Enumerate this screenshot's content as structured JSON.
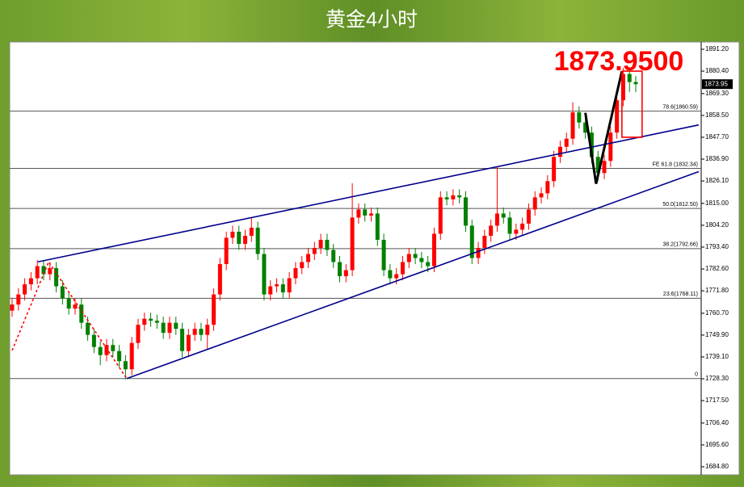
{
  "chart_data": {
    "type": "candlestick",
    "title": "黄金4小时",
    "annotation": "1873.9500",
    "last_price": {
      "value": 1873.95,
      "label": "1873.95"
    },
    "up_color": "#ff0000",
    "down_color": "#008000",
    "xlim": [
      0,
      109
    ],
    "ylim": [
      1680.8,
      1894.8
    ],
    "yticks": [
      {
        "value": 1891.2,
        "label": "1891.20"
      },
      {
        "value": 1880.4,
        "label": "1880.40"
      },
      {
        "value": 1869.3,
        "label": "1869.30"
      },
      {
        "value": 1858.5,
        "label": "1858.50"
      },
      {
        "value": 1847.7,
        "label": "1847.70"
      },
      {
        "value": 1836.9,
        "label": "1836.90"
      },
      {
        "value": 1826.1,
        "label": "1826.10"
      },
      {
        "value": 1815,
        "label": "1815.00"
      },
      {
        "value": 1804.2,
        "label": "1804.20"
      },
      {
        "value": 1793.4,
        "label": "1793.40"
      },
      {
        "value": 1782.6,
        "label": "1782.60"
      },
      {
        "value": 1771.8,
        "label": "1771.80"
      },
      {
        "value": 1760.7,
        "label": "1760.70"
      },
      {
        "value": 1749.9,
        "label": "1749.90"
      },
      {
        "value": 1739.1,
        "label": "1739.10"
      },
      {
        "value": 1728.3,
        "label": "1728.30"
      },
      {
        "value": 1717.5,
        "label": "1717.50"
      },
      {
        "value": 1706.4,
        "label": "1706.40"
      },
      {
        "value": 1695.6,
        "label": "1695.60"
      },
      {
        "value": 1684.8,
        "label": "1684.80"
      }
    ],
    "levels": [
      {
        "name": "78.6(1860.59)",
        "value": 1860.59
      },
      {
        "name": "FE 61.8 (1832.34)",
        "value": 1832.34
      },
      {
        "name": "50.0(1812.50)",
        "value": 1812.5
      },
      {
        "name": "38.2(1792.66)",
        "value": 1792.66
      },
      {
        "name": "23.6(1768.11)",
        "value": 1768.11
      },
      {
        "name": "0",
        "value": 1728.4
      }
    ],
    "open": [
      1762,
      1765,
      1770,
      1775,
      1778,
      1784,
      1780,
      1783,
      1774,
      1768,
      1763,
      1765,
      1756,
      1750,
      1744,
      1740,
      1745,
      1742,
      1737,
      1733,
      1746,
      1755,
      1758,
      1757,
      1756,
      1751,
      1756,
      1753,
      1742,
      1750,
      1753,
      1750,
      1755,
      1770,
      1785,
      1798,
      1801,
      1795,
      1799,
      1803,
      1790,
      1770,
      1774,
      1775,
      1771,
      1778,
      1783,
      1786,
      1790,
      1793,
      1797,
      1792,
      1786,
      1779,
      1782,
      1808,
      1812,
      1809,
      1810,
      1797,
      1782,
      1778,
      1780,
      1786,
      1790,
      1788,
      1786,
      1784,
      1800,
      1818,
      1817,
      1819,
      1818,
      1804,
      1788,
      1793,
      1799,
      1804,
      1810,
      1808,
      1800,
      1802,
      1805,
      1812,
      1818,
      1820,
      1826,
      1838,
      1843,
      1847,
      1860,
      1855,
      1850,
      1838,
      1830,
      1836,
      1850,
      1866,
      1879,
      1875
    ],
    "high": [
      1768,
      1773,
      1778,
      1781,
      1787,
      1787,
      1786,
      1786,
      1777,
      1771,
      1768,
      1768,
      1759,
      1753,
      1747,
      1748,
      1748,
      1745,
      1740,
      1749,
      1758,
      1761,
      1761,
      1760,
      1759,
      1759,
      1759,
      1756,
      1753,
      1756,
      1756,
      1758,
      1773,
      1788,
      1801,
      1804,
      1804,
      1802,
      1808,
      1806,
      1793,
      1777,
      1778,
      1778,
      1781,
      1786,
      1789,
      1793,
      1796,
      1800,
      1800,
      1795,
      1789,
      1785,
      1825,
      1815,
      1815,
      1813,
      1813,
      1800,
      1785,
      1783,
      1789,
      1793,
      1793,
      1791,
      1789,
      1803,
      1821,
      1821,
      1822,
      1822,
      1821,
      1807,
      1796,
      1802,
      1807,
      1833,
      1813,
      1811,
      1805,
      1808,
      1815,
      1821,
      1823,
      1829,
      1841,
      1846,
      1850,
      1865,
      1863,
      1858,
      1853,
      1841,
      1839,
      1853,
      1869,
      1882,
      1881,
      1878
    ],
    "low": [
      1759,
      1762,
      1767,
      1772,
      1775,
      1777,
      1777,
      1771,
      1765,
      1760,
      1760,
      1753,
      1747,
      1741,
      1735,
      1737,
      1739,
      1734,
      1728,
      1730,
      1743,
      1752,
      1754,
      1753,
      1748,
      1748,
      1750,
      1739,
      1739,
      1747,
      1747,
      1743,
      1752,
      1767,
      1782,
      1795,
      1792,
      1792,
      1796,
      1787,
      1767,
      1767,
      1771,
      1768,
      1768,
      1775,
      1780,
      1783,
      1787,
      1790,
      1789,
      1783,
      1776,
      1776,
      1779,
      1805,
      1806,
      1806,
      1794,
      1779,
      1775,
      1775,
      1777,
      1783,
      1785,
      1783,
      1781,
      1781,
      1797,
      1814,
      1814,
      1815,
      1801,
      1785,
      1785,
      1790,
      1796,
      1801,
      1805,
      1797,
      1797,
      1799,
      1802,
      1809,
      1815,
      1817,
      1823,
      1835,
      1840,
      1844,
      1852,
      1847,
      1835,
      1826,
      1827,
      1833,
      1847,
      1863,
      1870,
      1870
    ],
    "close": [
      1765,
      1770,
      1775,
      1778,
      1784,
      1780,
      1783,
      1774,
      1768,
      1763,
      1765,
      1756,
      1750,
      1744,
      1740,
      1745,
      1742,
      1737,
      1733,
      1746,
      1755,
      1758,
      1757,
      1756,
      1751,
      1756,
      1753,
      1742,
      1750,
      1753,
      1750,
      1755,
      1770,
      1785,
      1798,
      1801,
      1795,
      1799,
      1803,
      1790,
      1770,
      1774,
      1775,
      1771,
      1778,
      1783,
      1786,
      1790,
      1793,
      1797,
      1792,
      1786,
      1779,
      1782,
      1808,
      1812,
      1809,
      1810,
      1797,
      1782,
      1778,
      1780,
      1786,
      1790,
      1788,
      1786,
      1784,
      1800,
      1818,
      1817,
      1819,
      1818,
      1804,
      1788,
      1793,
      1799,
      1804,
      1810,
      1808,
      1800,
      1802,
      1805,
      1812,
      1818,
      1820,
      1826,
      1838,
      1843,
      1847,
      1860,
      1855,
      1850,
      1838,
      1830,
      1836,
      1850,
      1866,
      1879,
      1875,
      1873.95
    ],
    "drawings": [
      {
        "color": "#00008b",
        "dashed": false,
        "x": [
          4.1,
          109
        ],
        "y": [
          1786.1,
          1853.8
        ]
      },
      {
        "color": "#00008b",
        "dashed": false,
        "x": [
          18.2,
          109
        ],
        "y": [
          1728.4,
          1830.7
        ]
      },
      {
        "color": "#ff0000",
        "dashed": true,
        "x": [
          0,
          5.8,
          18.2
        ],
        "y": [
          1742.3,
          1786.1,
          1728.4
        ]
      },
      {
        "color": "#000000",
        "dashed": false,
        "x": [
          91,
          92.7,
          96.8
        ],
        "y": [
          1859.8,
          1824.7,
          1880.4
        ]
      },
      {
        "color": "#ff0000",
        "dashed": false,
        "x": [
          96.8,
          100,
          100,
          96.8,
          96.8
        ],
        "y": [
          1880.4,
          1880.4,
          1847.7,
          1847.7,
          1880.4
        ]
      }
    ]
  }
}
